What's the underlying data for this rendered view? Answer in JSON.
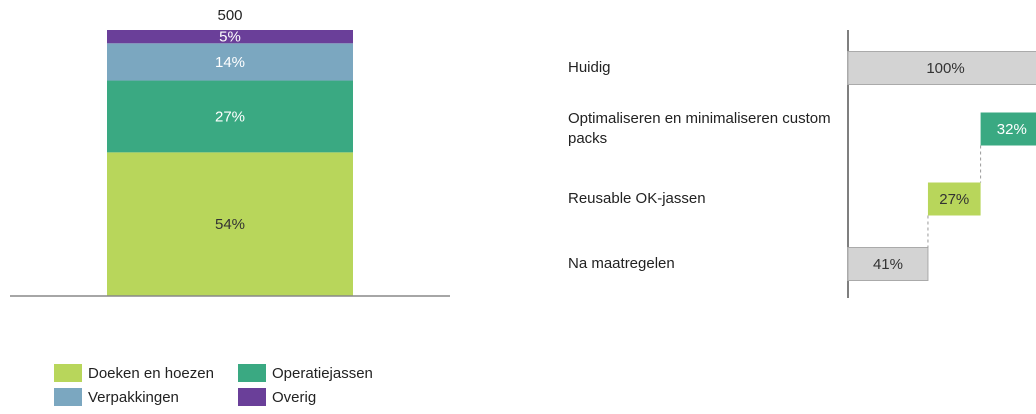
{
  "chart_data": [
    {
      "type": "stacked_bar",
      "total": 500,
      "series": [
        {
          "name": "Doeken en hoezen",
          "color": "#b8d65b",
          "values": [
            54
          ],
          "value_labels": [
            "54%"
          ]
        },
        {
          "name": "Operatiejassen",
          "color": "#3aa982",
          "values": [
            27
          ],
          "value_labels": [
            "27%"
          ]
        },
        {
          "name": "Verpakkingen",
          "color": "#7ba7c0",
          "values": [
            14
          ],
          "value_labels": [
            "14%"
          ]
        },
        {
          "name": "Overig",
          "color": "#6a3f99",
          "values": [
            5
          ],
          "value_labels": [
            "5%"
          ]
        }
      ]
    },
    {
      "type": "waterfall",
      "categories": [
        "Huidig",
        "Optimaliseren en minimaliseren custom packs",
        "Reusable OK-jassen",
        "Na maatregelen"
      ],
      "values": [
        100,
        32,
        27,
        41
      ],
      "value_labels": [
        "100%",
        "32%",
        "27%",
        "41%"
      ],
      "colors": [
        "#d3d3d3",
        "#3aa982",
        "#b8d65b",
        "#d3d3d3"
      ]
    }
  ]
}
